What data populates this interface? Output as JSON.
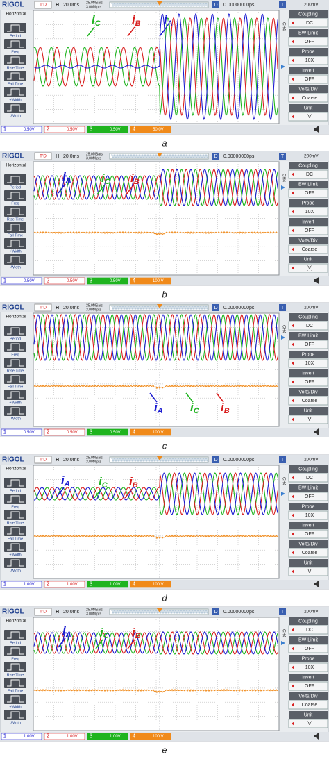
{
  "panels": [
    {
      "header": {
        "brand": "RIGOL",
        "status": "T'D",
        "h": "H",
        "timebase": "20.0ms",
        "rate": "25.0MSa/s",
        "points": "3.00M pts",
        "d": "D",
        "delay": "0.00000000ps",
        "t": "T",
        "trigger_level": "200mV"
      },
      "left_menu": [
        "Horizontal",
        "Period",
        "Freq",
        "Rise Time",
        "Fall Time",
        "+Width",
        "-Width"
      ],
      "right_menu": [
        {
          "label": "Coupling",
          "value": "DC"
        },
        {
          "label": "BW Limit",
          "value": "OFF"
        },
        {
          "label": "Probe",
          "value": "10X"
        },
        {
          "label": "Invert",
          "value": "OFF"
        },
        {
          "label": "Volts/Div",
          "value": "Coarse"
        },
        {
          "label": "Unit",
          "value": "[V]"
        }
      ],
      "channel_tag": "CH4",
      "channels": [
        {
          "number": "1",
          "scale": "0.50V"
        },
        {
          "number": "2",
          "scale": "0.50V"
        },
        {
          "number": "3",
          "scale": "0.50V"
        },
        {
          "number": "4",
          "scale": "50.0V"
        }
      ],
      "annotations": [
        {
          "main": "i",
          "sub": "C",
          "color": "#1fb41f"
        },
        {
          "main": "i",
          "sub": "B",
          "color": "#d81e1e"
        },
        {
          "main": "i",
          "sub": "A",
          "color": "#1c1cd0"
        }
      ],
      "caption": "a"
    },
    {
      "header": {
        "brand": "RIGOL",
        "status": "T'D",
        "h": "H",
        "timebase": "20.0ms",
        "rate": "25.0MSa/s",
        "points": "3.00M pts",
        "d": "D",
        "delay": "0.00000000ps",
        "t": "T",
        "trigger_level": "200mV"
      },
      "left_menu": [
        "Horizontal",
        "Period",
        "Freq",
        "Rise Time",
        "Fall Time",
        "+Width",
        "-Width"
      ],
      "right_menu": [
        {
          "label": "Coupling",
          "value": "DC"
        },
        {
          "label": "BW Limit",
          "value": "OFF"
        },
        {
          "label": "Probe",
          "value": "10X"
        },
        {
          "label": "Invert",
          "value": "OFF"
        },
        {
          "label": "Volts/Div",
          "value": "Coarse"
        },
        {
          "label": "Unit",
          "value": "[V]"
        }
      ],
      "channel_tag": "CH4",
      "channels": [
        {
          "number": "1",
          "scale": "0.50V"
        },
        {
          "number": "2",
          "scale": "0.50V"
        },
        {
          "number": "3",
          "scale": "0.50V"
        },
        {
          "number": "4",
          "scale": "100 V"
        }
      ],
      "annotations": [
        {
          "main": "i",
          "sub": "A",
          "color": "#1c1cd0"
        },
        {
          "main": "i",
          "sub": "C",
          "color": "#1fb41f"
        },
        {
          "main": "i",
          "sub": "B",
          "color": "#d81e1e"
        }
      ],
      "caption": "b"
    },
    {
      "header": {
        "brand": "RIGOL",
        "status": "T'D",
        "h": "H",
        "timebase": "20.0ms",
        "rate": "25.0MSa/s",
        "points": "3.00M pts",
        "d": "D",
        "delay": "0.00000000ps",
        "t": "T",
        "trigger_level": "200mV"
      },
      "left_menu": [
        "Horizontal",
        "Period",
        "Freq",
        "Rise Time",
        "Fall Time",
        "+Width",
        "-Width"
      ],
      "right_menu": [
        {
          "label": "Coupling",
          "value": "DC"
        },
        {
          "label": "BW Limit",
          "value": "OFF"
        },
        {
          "label": "Probe",
          "value": "10X"
        },
        {
          "label": "Invert",
          "value": "OFF"
        },
        {
          "label": "Volts/Div",
          "value": "Coarse"
        },
        {
          "label": "Unit",
          "value": "[V]"
        }
      ],
      "channel_tag": "CH4",
      "channels": [
        {
          "number": "1",
          "scale": "0.50V"
        },
        {
          "number": "2",
          "scale": "0.50V"
        },
        {
          "number": "3",
          "scale": "0.50V"
        },
        {
          "number": "4",
          "scale": "100 V"
        }
      ],
      "annotations": [
        {
          "main": "i",
          "sub": "A",
          "color": "#1c1cd0"
        },
        {
          "main": "i",
          "sub": "C",
          "color": "#1fb41f"
        },
        {
          "main": "i",
          "sub": "B",
          "color": "#d81e1e"
        }
      ],
      "caption": "c"
    },
    {
      "header": {
        "brand": "RIGOL",
        "status": "T'D",
        "h": "H",
        "timebase": "20.0ms",
        "rate": "25.0MSa/s",
        "points": "3.00M pts",
        "d": "D",
        "delay": "0.00000000ps",
        "t": "T",
        "trigger_level": "200mV"
      },
      "left_menu": [
        "Horizontal",
        "Period",
        "Freq",
        "Rise Time",
        "Fall Time",
        "+Width",
        "-Width"
      ],
      "right_menu": [
        {
          "label": "Coupling",
          "value": "DC"
        },
        {
          "label": "BW Limit",
          "value": "OFF"
        },
        {
          "label": "Probe",
          "value": "10X"
        },
        {
          "label": "Invert",
          "value": "OFF"
        },
        {
          "label": "Volts/Div",
          "value": "Coarse"
        },
        {
          "label": "Unit",
          "value": "[V]"
        }
      ],
      "channel_tag": "CH4",
      "channels": [
        {
          "number": "1",
          "scale": "1.00V"
        },
        {
          "number": "2",
          "scale": "1.00V"
        },
        {
          "number": "3",
          "scale": "1.00V"
        },
        {
          "number": "4",
          "scale": "100 V"
        }
      ],
      "annotations": [
        {
          "main": "i",
          "sub": "A",
          "color": "#1c1cd0"
        },
        {
          "main": "i",
          "sub": "C",
          "color": "#1fb41f"
        },
        {
          "main": "i",
          "sub": "B",
          "color": "#d81e1e"
        }
      ],
      "caption": "d"
    },
    {
      "header": {
        "brand": "RIGOL",
        "status": "T'D",
        "h": "H",
        "timebase": "20.0ms",
        "rate": "25.0MSa/s",
        "points": "3.00M pts",
        "d": "D",
        "delay": "0.00000000ps",
        "t": "T",
        "trigger_level": "200mV"
      },
      "left_menu": [
        "Horizontal",
        "Period",
        "Freq",
        "Rise Time",
        "Fall Time",
        "+Width",
        "-Width"
      ],
      "right_menu": [
        {
          "label": "Coupling",
          "value": "DC"
        },
        {
          "label": "BW Limit",
          "value": "OFF"
        },
        {
          "label": "Probe",
          "value": "10X"
        },
        {
          "label": "Invert",
          "value": "OFF"
        },
        {
          "label": "Volts/Div",
          "value": "Coarse"
        },
        {
          "label": "Unit",
          "value": "[V]"
        }
      ],
      "channel_tag": "CH4",
      "channels": [
        {
          "number": "1",
          "scale": "1.00V"
        },
        {
          "number": "2",
          "scale": "1.00V"
        },
        {
          "number": "3",
          "scale": "1.00V"
        },
        {
          "number": "4",
          "scale": "100 V"
        }
      ],
      "annotations": [
        {
          "main": "i",
          "sub": "A",
          "color": "#1c1cd0"
        },
        {
          "main": "i",
          "sub": "C",
          "color": "#1fb41f"
        },
        {
          "main": "i",
          "sub": "B",
          "color": "#d81e1e"
        }
      ],
      "caption": "e"
    }
  ]
}
